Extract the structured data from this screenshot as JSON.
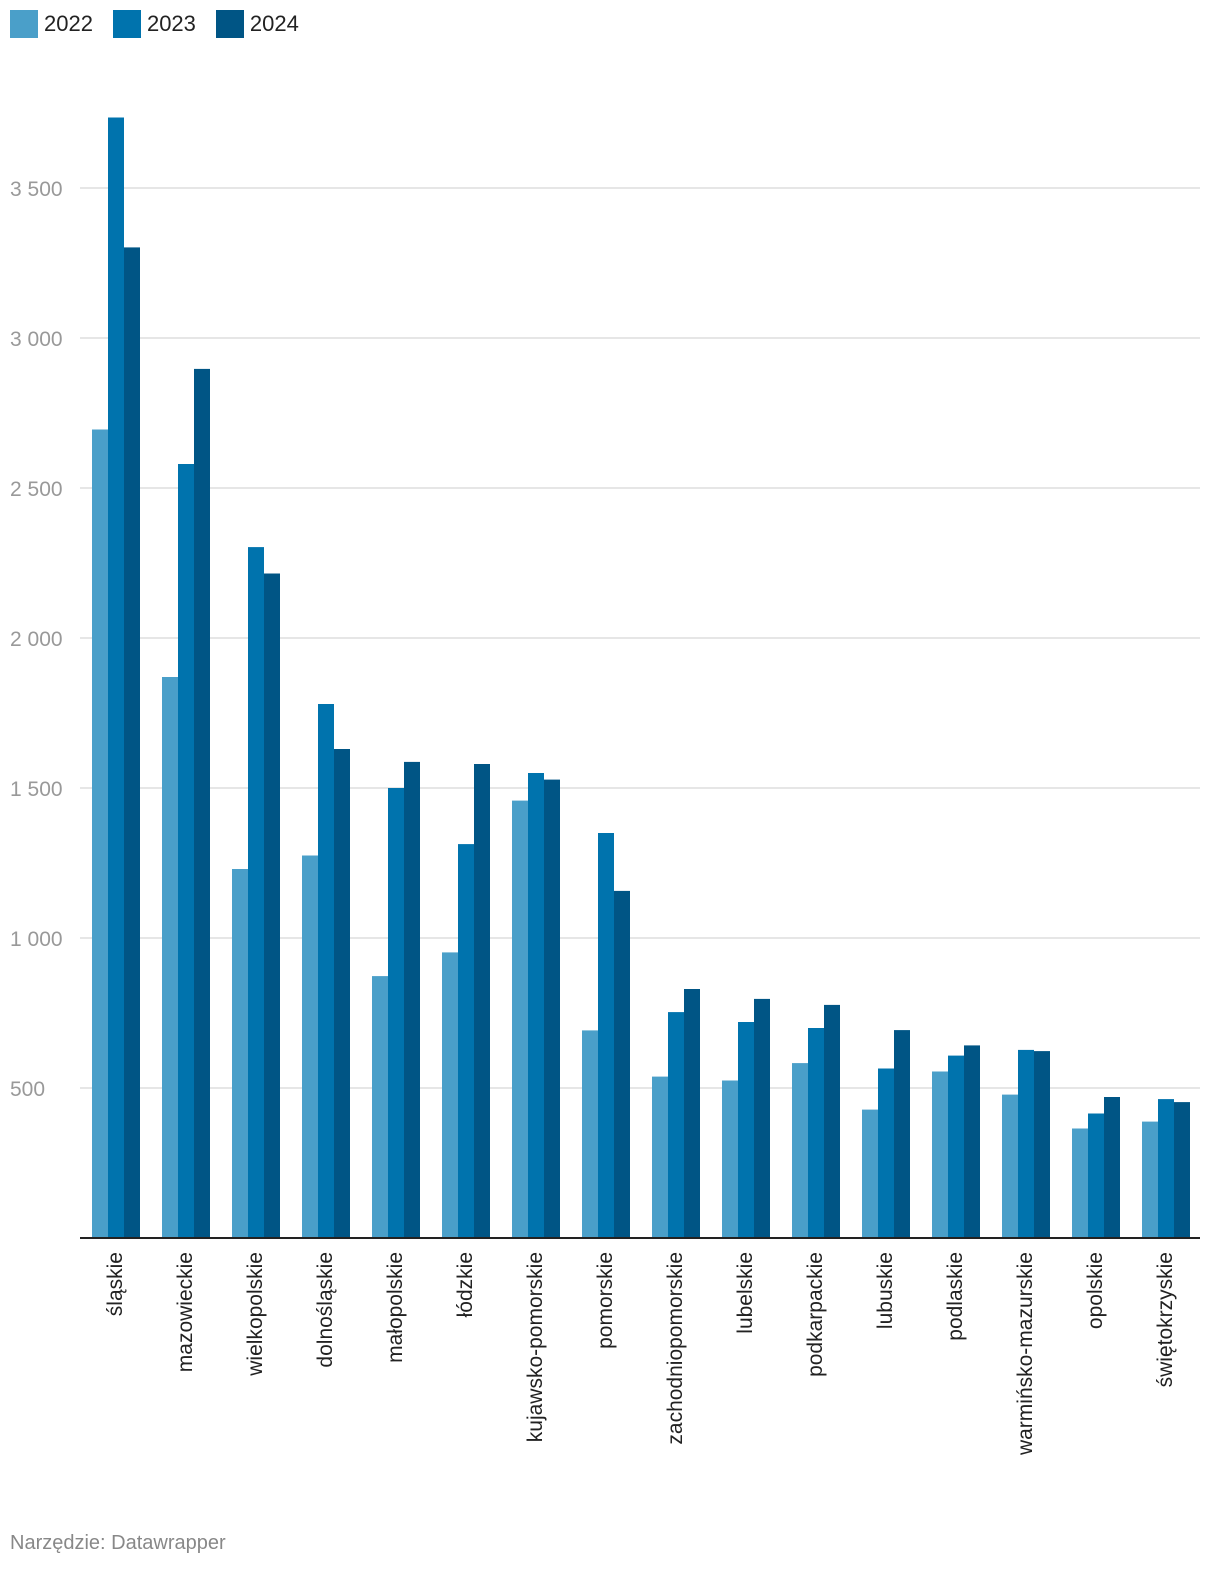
{
  "footer": {
    "source": "Narzędzie: Datawrapper"
  },
  "colors": {
    "2022": "#4a9fc9",
    "2023": "#0073ad",
    "2024": "#005585",
    "grid": "#dddddd",
    "axis": "#222222",
    "tick": "#999999"
  },
  "chart_data": {
    "type": "bar",
    "title": "",
    "xlabel": "",
    "ylabel": "",
    "ylim": [
      0,
      3750
    ],
    "yticks": [
      500,
      1000,
      1500,
      2000,
      2500,
      3000,
      3500
    ],
    "ytick_labels": [
      "500",
      "1 000",
      "1 500",
      "2 000",
      "2 500",
      "3 000",
      "3 500"
    ],
    "grid": true,
    "legend_position": "top-left",
    "categories": [
      "śląskie",
      "mazowieckie",
      "wielkopolskie",
      "dolnośląskie",
      "małopolskie",
      "łódzkie",
      "kujawsko-pomorskie",
      "pomorskie",
      "zachodniopomorskie",
      "lubelskie",
      "podkarpackie",
      "lubuskie",
      "podlaskie",
      "warmińsko-mazurskie",
      "opolskie",
      "świętokrzyskie"
    ],
    "series": [
      {
        "name": "2022",
        "values": [
          2695,
          1870,
          1230,
          1275,
          873,
          952,
          1458,
          692,
          538,
          525,
          583,
          428,
          555,
          478,
          365,
          388
        ]
      },
      {
        "name": "2023",
        "values": [
          3735,
          2580,
          2303,
          1780,
          1500,
          1313,
          1550,
          1350,
          753,
          720,
          700,
          565,
          608,
          627,
          415,
          463
        ]
      },
      {
        "name": "2024",
        "values": [
          3302,
          2897,
          2215,
          1630,
          1587,
          1580,
          1528,
          1157,
          830,
          797,
          777,
          693,
          642,
          623,
          470,
          453
        ]
      }
    ]
  }
}
